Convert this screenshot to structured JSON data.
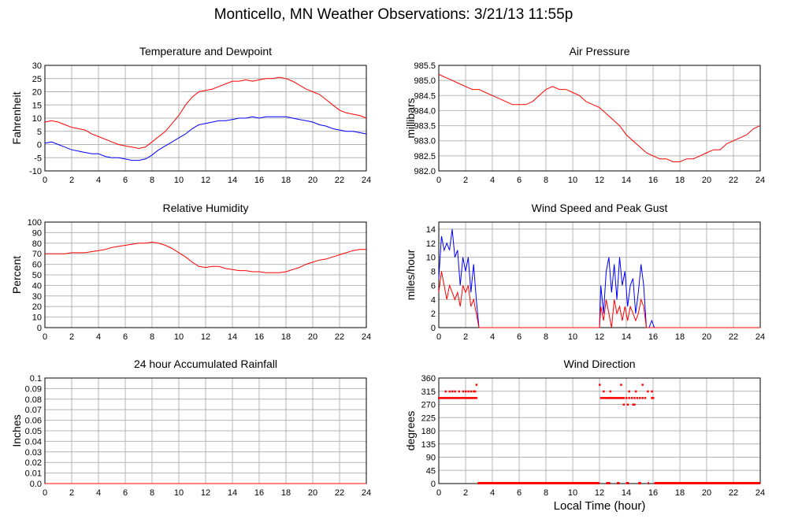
{
  "title": "Monticello, MN Weather Observations: 3/21/13 11:55p",
  "xlabel": "Local Time (hour)",
  "colors": {
    "red": "#ff0000",
    "blue": "#0000ff",
    "grid": "#b4b4b4"
  },
  "chart_data": [
    {
      "id": "temp",
      "type": "line",
      "title": "Temperature and Dewpoint",
      "ylabel": "Fahrenheit",
      "xlim": [
        0,
        24
      ],
      "ylim": [
        -10,
        30
      ],
      "xticks": [
        0,
        2,
        4,
        6,
        8,
        10,
        12,
        14,
        16,
        18,
        20,
        22,
        24
      ],
      "yticks": [
        -10,
        -5,
        0,
        5,
        10,
        15,
        20,
        25,
        30
      ],
      "grid": true,
      "series": [
        {
          "color": "#ff0000",
          "x": [
            0,
            0.5,
            1,
            1.5,
            2,
            2.5,
            3,
            3.5,
            4,
            4.5,
            5,
            5.5,
            6,
            6.5,
            7,
            7.5,
            8,
            8.5,
            9,
            9.5,
            10,
            10.5,
            11,
            11.5,
            12,
            12.5,
            13,
            13.5,
            14,
            14.5,
            15,
            15.5,
            16,
            16.5,
            17,
            17.5,
            18,
            18.5,
            19,
            19.5,
            20,
            20.5,
            21,
            21.5,
            22,
            22.5,
            23,
            23.5,
            24
          ],
          "y": [
            8.5,
            9,
            8.5,
            7.5,
            6.5,
            6,
            5.5,
            4,
            3,
            2,
            1,
            0,
            -0.5,
            -1,
            -1.5,
            -1,
            1,
            3,
            5,
            8,
            11,
            15,
            18,
            20,
            20.5,
            21,
            22,
            23,
            24,
            24,
            24.5,
            24,
            24.5,
            25,
            25,
            25.5,
            25,
            24,
            22.5,
            21,
            20,
            19,
            17,
            15,
            13,
            12,
            11.5,
            11,
            10
          ]
        },
        {
          "color": "#0000ff",
          "x": [
            0,
            0.5,
            1,
            1.5,
            2,
            2.5,
            3,
            3.5,
            4,
            4.5,
            5,
            5.5,
            6,
            6.5,
            7,
            7.5,
            8,
            8.5,
            9,
            9.5,
            10,
            10.5,
            11,
            11.5,
            12,
            12.5,
            13,
            13.5,
            14,
            14.5,
            15,
            15.5,
            16,
            16.5,
            17,
            17.5,
            18,
            18.5,
            19,
            19.5,
            20,
            20.5,
            21,
            21.5,
            22,
            22.5,
            23,
            23.5,
            24
          ],
          "y": [
            0.5,
            1,
            0,
            -1,
            -2,
            -2.5,
            -3,
            -3.5,
            -3.5,
            -4.5,
            -5,
            -5,
            -5.5,
            -6,
            -6,
            -5.5,
            -4,
            -2,
            -0.5,
            1,
            2.5,
            4,
            6,
            7.5,
            8,
            8.5,
            9,
            9,
            9.5,
            10,
            10,
            10.5,
            10,
            10.5,
            10.5,
            10.5,
            10.5,
            10,
            9.5,
            9,
            8.5,
            7.5,
            7,
            6,
            5.5,
            5,
            5,
            4.5,
            4
          ]
        }
      ]
    },
    {
      "id": "pressure",
      "type": "line",
      "title": "Air Pressure",
      "ylabel": "millibars",
      "xlim": [
        0,
        24
      ],
      "ylim": [
        982.0,
        985.5
      ],
      "xticks": [
        0,
        2,
        4,
        6,
        8,
        10,
        12,
        14,
        16,
        18,
        20,
        22,
        24
      ],
      "yticks": [
        "982.0",
        "982.5",
        "983.0",
        "983.5",
        "984.0",
        "984.5",
        "985.0",
        "985.5"
      ],
      "grid": true,
      "series": [
        {
          "color": "#ff0000",
          "x": [
            0,
            0.5,
            1,
            1.5,
            2,
            2.5,
            3,
            3.5,
            4,
            4.5,
            5,
            5.5,
            6,
            6.5,
            7,
            7.5,
            8,
            8.5,
            9,
            9.5,
            10,
            10.5,
            11,
            11.5,
            12,
            12.5,
            13,
            13.5,
            14,
            14.5,
            15,
            15.5,
            16,
            16.5,
            17,
            17.5,
            18,
            18.5,
            19,
            19.5,
            20,
            20.5,
            21,
            21.5,
            22,
            22.5,
            23,
            23.5,
            24
          ],
          "y": [
            985.2,
            985.1,
            985.0,
            984.9,
            984.8,
            984.7,
            984.7,
            984.6,
            984.5,
            984.4,
            984.3,
            984.2,
            984.2,
            984.2,
            984.3,
            984.5,
            984.7,
            984.8,
            984.7,
            984.7,
            984.6,
            984.5,
            984.3,
            984.2,
            984.1,
            983.9,
            983.7,
            983.5,
            983.2,
            983.0,
            982.8,
            982.6,
            982.5,
            982.4,
            982.4,
            982.3,
            982.3,
            982.4,
            982.4,
            982.5,
            982.6,
            982.7,
            982.7,
            982.9,
            983.0,
            983.1,
            983.2,
            983.4,
            983.5
          ]
        }
      ]
    },
    {
      "id": "humidity",
      "type": "line",
      "title": "Relative Humidity",
      "ylabel": "Percent",
      "xlim": [
        0,
        24
      ],
      "ylim": [
        0,
        100
      ],
      "xticks": [
        0,
        2,
        4,
        6,
        8,
        10,
        12,
        14,
        16,
        18,
        20,
        22,
        24
      ],
      "yticks": [
        0,
        10,
        20,
        30,
        40,
        50,
        60,
        70,
        80,
        90,
        100
      ],
      "grid": true,
      "series": [
        {
          "color": "#ff0000",
          "x": [
            0,
            0.5,
            1,
            1.5,
            2,
            2.5,
            3,
            3.5,
            4,
            4.5,
            5,
            5.5,
            6,
            6.5,
            7,
            7.5,
            8,
            8.5,
            9,
            9.5,
            10,
            10.5,
            11,
            11.5,
            12,
            12.5,
            13,
            13.5,
            14,
            14.5,
            15,
            15.5,
            16,
            16.5,
            17,
            17.5,
            18,
            18.5,
            19,
            19.5,
            20,
            20.5,
            21,
            21.5,
            22,
            22.5,
            23,
            23.5,
            24
          ],
          "y": [
            70,
            70,
            70,
            70,
            71,
            71,
            71,
            72,
            73,
            74,
            76,
            77,
            78,
            79,
            80,
            80,
            81,
            80,
            78,
            75,
            71,
            67,
            62,
            58,
            57,
            58,
            58,
            56,
            55,
            54,
            54,
            53,
            53,
            52,
            52,
            52,
            53,
            55,
            57,
            60,
            62,
            64,
            65,
            67,
            69,
            71,
            73,
            74,
            74
          ]
        }
      ]
    },
    {
      "id": "wind",
      "type": "line",
      "title": "Wind Speed and Peak Gust",
      "ylabel": "miles/hour",
      "xlim": [
        0,
        24
      ],
      "ylim": [
        0,
        15
      ],
      "xticks": [
        0,
        2,
        4,
        6,
        8,
        10,
        12,
        14,
        16,
        18,
        20,
        22,
        24
      ],
      "yticks": [
        0,
        2,
        4,
        6,
        8,
        10,
        12,
        14
      ],
      "grid": true,
      "series": [
        {
          "color": "#0000ff",
          "x": [
            0,
            0.2,
            0.4,
            0.6,
            0.8,
            1.0,
            1.2,
            1.4,
            1.6,
            1.8,
            2.0,
            2.2,
            2.4,
            2.6,
            2.8,
            3.0,
            3.2,
            12,
            12.1,
            12.3,
            12.5,
            12.7,
            12.9,
            13.1,
            13.3,
            13.5,
            13.7,
            13.9,
            14.1,
            14.3,
            14.5,
            14.7,
            14.9,
            15.1,
            15.3,
            15.5,
            15.7,
            15.9,
            16.1,
            16.3,
            24
          ],
          "y": [
            7,
            13,
            11,
            12,
            11,
            14,
            10,
            11,
            6,
            10,
            8,
            10,
            5,
            9,
            4,
            0,
            0,
            0,
            6,
            2,
            8,
            10,
            5,
            9,
            4,
            10,
            6,
            8,
            3,
            6,
            7,
            2,
            5,
            9,
            6,
            0,
            0,
            1,
            0,
            0,
            0
          ]
        },
        {
          "color": "#ff0000",
          "x": [
            0,
            0.2,
            0.4,
            0.6,
            0.8,
            1.0,
            1.2,
            1.4,
            1.6,
            1.8,
            2.0,
            2.2,
            2.4,
            2.6,
            2.8,
            3.0,
            3.2,
            12,
            12.1,
            12.3,
            12.5,
            12.7,
            12.9,
            13.1,
            13.3,
            13.5,
            13.7,
            13.9,
            14.1,
            14.3,
            14.5,
            14.7,
            14.9,
            15.1,
            15.3,
            15.5,
            15.7,
            15.9,
            16.1,
            16.3,
            24
          ],
          "y": [
            5,
            8,
            6,
            4,
            6,
            5,
            4,
            5,
            3,
            6,
            5,
            6,
            3,
            4,
            2,
            0,
            0,
            0,
            3,
            1,
            4,
            2,
            0,
            4,
            2,
            3,
            1,
            3,
            1,
            3,
            2,
            1,
            2,
            4,
            3,
            0,
            0,
            0,
            0,
            0,
            0
          ]
        }
      ]
    },
    {
      "id": "rain",
      "type": "line",
      "title": "24 hour Accumulated Rainfall",
      "ylabel": "Inches",
      "xlim": [
        0,
        24
      ],
      "ylim": [
        0,
        0.1
      ],
      "xticks": [
        0,
        2,
        4,
        6,
        8,
        10,
        12,
        14,
        16,
        18,
        20,
        22,
        24
      ],
      "yticks": [
        "0.0",
        "0.01",
        "0.02",
        "0.03",
        "0.04",
        "0.05",
        "0.06",
        "0.07",
        "0.08",
        "0.09",
        "0.1"
      ],
      "grid": true,
      "series": [
        {
          "color": "#ff0000",
          "x": [
            0,
            24
          ],
          "y": [
            0,
            0
          ]
        }
      ]
    },
    {
      "id": "winddir",
      "type": "scatter",
      "title": "Wind Direction",
      "ylabel": "degrees",
      "xlim": [
        0,
        24
      ],
      "ylim": [
        0,
        360
      ],
      "xticks": [
        0,
        2,
        4,
        6,
        8,
        10,
        12,
        14,
        16,
        18,
        20,
        22,
        24
      ],
      "yticks": [
        0,
        45,
        90,
        135,
        180,
        225,
        270,
        315,
        360
      ],
      "grid": true,
      "series": [
        {
          "color": "#ff0000",
          "x": [
            0.0,
            0.1,
            0.2,
            0.3,
            0.4,
            0.5,
            0.6,
            0.7,
            0.8,
            0.9,
            1.0,
            1.1,
            1.2,
            1.3,
            1.4,
            1.5,
            1.6,
            1.7,
            1.8,
            1.9,
            2.0,
            2.1,
            2.2,
            2.3,
            2.4,
            2.5,
            2.6,
            2.7,
            2.8,
            0.5,
            0.8,
            1.0,
            1.2,
            1.5,
            1.8,
            2.0,
            2.2,
            2.4,
            2.6,
            2.7,
            2.8,
            12.1,
            12.2,
            12.3,
            12.4,
            12.5,
            12.6,
            12.7,
            12.8,
            12.9,
            13.0,
            13.1,
            13.2,
            13.3,
            13.4,
            13.5,
            13.6,
            13.7,
            13.8,
            14.0,
            14.2,
            14.4,
            14.6,
            14.8,
            15.0,
            15.2,
            15.4,
            15.9,
            16.0,
            12.0,
            12.3,
            12.8,
            13.6,
            14.2,
            14.7,
            15.2,
            15.6,
            15.9,
            13.8,
            14.1,
            14.5,
            14.6
          ],
          "y": [
            292.5,
            292.5,
            292.5,
            292.5,
            292.5,
            292.5,
            292.5,
            292.5,
            292.5,
            292.5,
            292.5,
            292.5,
            292.5,
            292.5,
            292.5,
            292.5,
            292.5,
            292.5,
            292.5,
            292.5,
            292.5,
            292.5,
            292.5,
            292.5,
            292.5,
            292.5,
            292.5,
            292.5,
            292.5,
            315,
            315,
            315,
            315,
            315,
            315,
            315,
            315,
            315,
            315,
            315,
            337.5,
            292.5,
            292.5,
            292.5,
            292.5,
            292.5,
            292.5,
            292.5,
            292.5,
            292.5,
            292.5,
            292.5,
            292.5,
            292.5,
            292.5,
            292.5,
            292.5,
            292.5,
            292.5,
            292.5,
            292.5,
            292.5,
            292.5,
            292.5,
            292.5,
            292.5,
            292.5,
            292.5,
            292.5,
            337.5,
            315,
            315,
            337.5,
            315,
            315,
            337.5,
            315,
            315,
            270,
            270,
            270,
            270
          ]
        },
        {
          "color": "#ff0000",
          "segments": [
            [
              2.9,
              12.0
            ],
            [
              12.5,
              12.8
            ],
            [
              13.3,
              13.5
            ],
            [
              14.0,
              14.2
            ],
            [
              14.9,
              15.1
            ],
            [
              15.6,
              15.7
            ],
            [
              16.1,
              24.0
            ]
          ],
          "y": 0
        }
      ]
    }
  ]
}
